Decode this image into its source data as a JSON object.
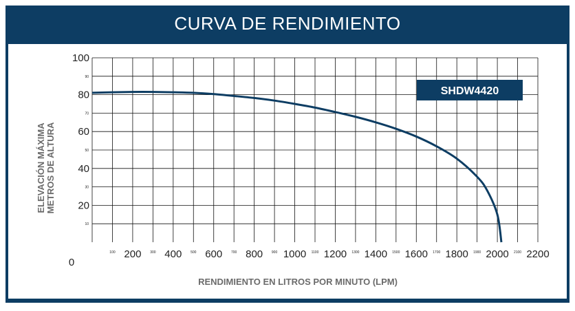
{
  "header": {
    "title": "CURVA DE RENDIMIENTO"
  },
  "chart_data": {
    "type": "line",
    "title": "CURVA DE RENDIMIENTO",
    "xlabel": "RENDIMIENTO EN LITROS POR MINUTO (LPM)",
    "ylabel_lines": [
      "ELEVACIÓN MÁXIMA",
      "METROS DE ALTURA"
    ],
    "xlim": [
      0,
      2200
    ],
    "ylim": [
      0,
      100
    ],
    "grid": true,
    "origin_label": "0",
    "x_major_ticks": [
      200,
      400,
      600,
      800,
      1000,
      1200,
      1400,
      1600,
      1800,
      2000,
      2200
    ],
    "x_minor_ticks": [
      100,
      300,
      500,
      700,
      900,
      1100,
      1300,
      1500,
      1700,
      1900,
      2100
    ],
    "y_major_ticks": [
      20,
      40,
      60,
      80,
      100
    ],
    "y_minor_ticks": [
      10,
      30,
      50,
      70,
      90
    ],
    "legend_placement": "top-right",
    "series": [
      {
        "name": "SHDW4420",
        "color": "#0d3d63",
        "x": [
          0,
          100,
          200,
          300,
          400,
          500,
          600,
          700,
          800,
          900,
          1000,
          1100,
          1200,
          1300,
          1400,
          1500,
          1600,
          1700,
          1800,
          1900,
          1950,
          2000,
          2020
        ],
        "y": [
          81,
          81.3,
          81.5,
          81.5,
          81.3,
          81,
          80.3,
          79.3,
          78.2,
          76.8,
          75,
          73,
          70.6,
          68,
          65,
          61.5,
          57.3,
          52,
          45.3,
          35.5,
          28,
          15,
          0
        ]
      }
    ]
  }
}
